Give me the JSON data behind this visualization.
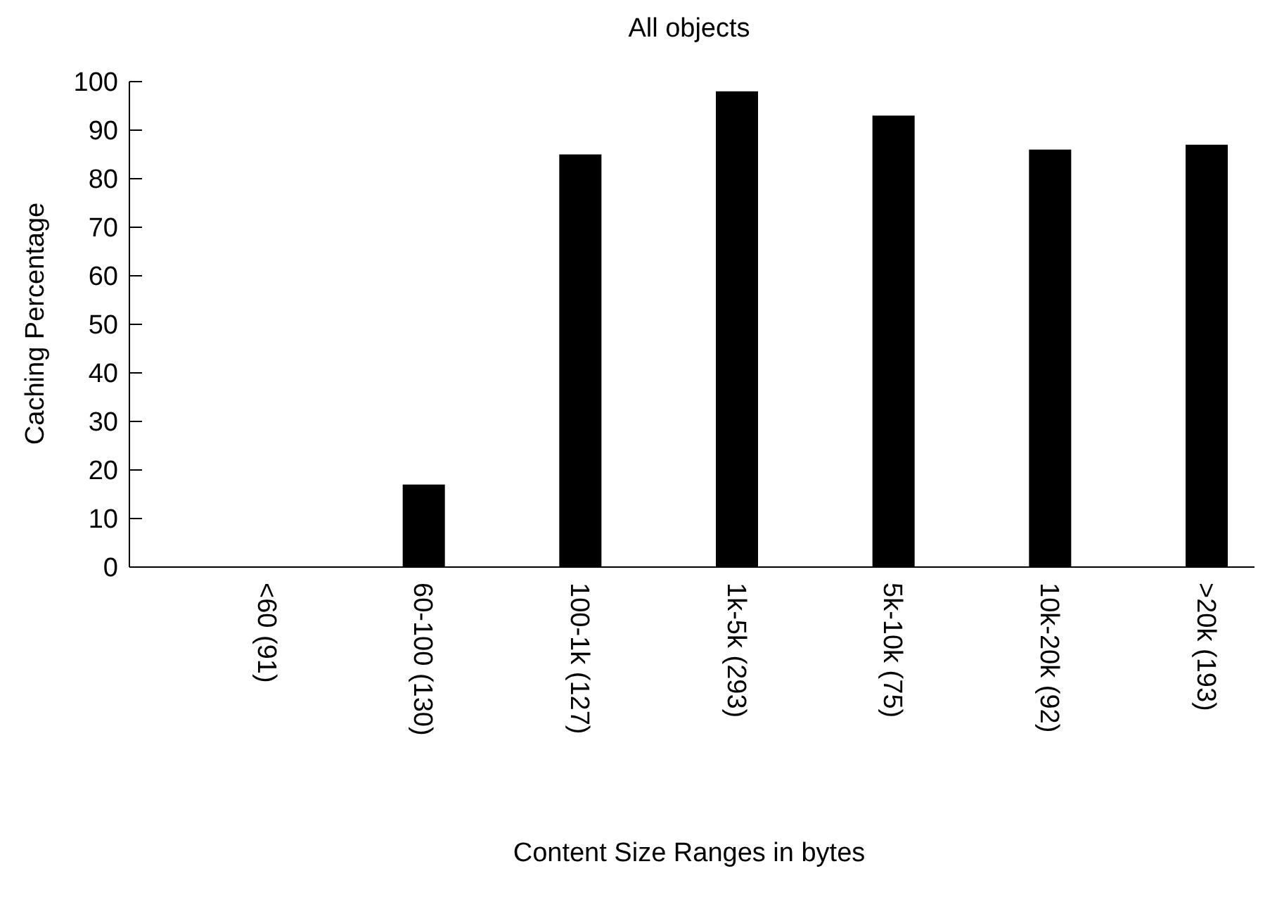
{
  "chart_data": {
    "type": "bar",
    "title": "All objects",
    "xlabel": "Content Size Ranges in bytes",
    "ylabel": "Caching Percentage",
    "categories": [
      "<60 (91)",
      "60-100 (130)",
      "100-1k (127)",
      "1k-5k (293)",
      "5k-10k (75)",
      "10k-20k (92)",
      ">20k (193)"
    ],
    "values": [
      0,
      17,
      85,
      98,
      93,
      86,
      87
    ],
    "color": "#000000",
    "ylim": [
      0,
      100
    ],
    "yticks": [
      0,
      10,
      20,
      30,
      40,
      50,
      60,
      70,
      80,
      90,
      100
    ],
    "grid": false
  }
}
